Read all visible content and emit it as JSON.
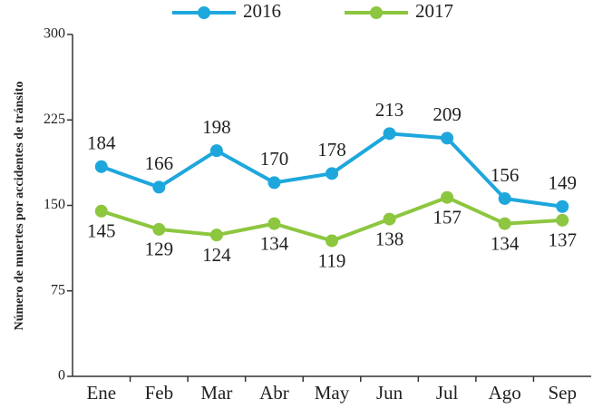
{
  "chart_data": {
    "type": "line",
    "y_label": "Número de muertes por accidentes de tránsito",
    "categories": [
      "Ene",
      "Feb",
      "Mar",
      "Abr",
      "May",
      "Jun",
      "Jul",
      "Ago",
      "Sep"
    ],
    "series": [
      {
        "name": "2016",
        "color": "#1ea7dc",
        "values": [
          184,
          166,
          198,
          170,
          178,
          213,
          209,
          156,
          149
        ]
      },
      {
        "name": "2017",
        "color": "#8dc63f",
        "values": [
          145,
          129,
          124,
          134,
          119,
          138,
          157,
          134,
          137
        ]
      }
    ],
    "ylim": [
      0,
      300
    ],
    "yticks": [
      0,
      75,
      150,
      225,
      300
    ],
    "legend": "top"
  }
}
